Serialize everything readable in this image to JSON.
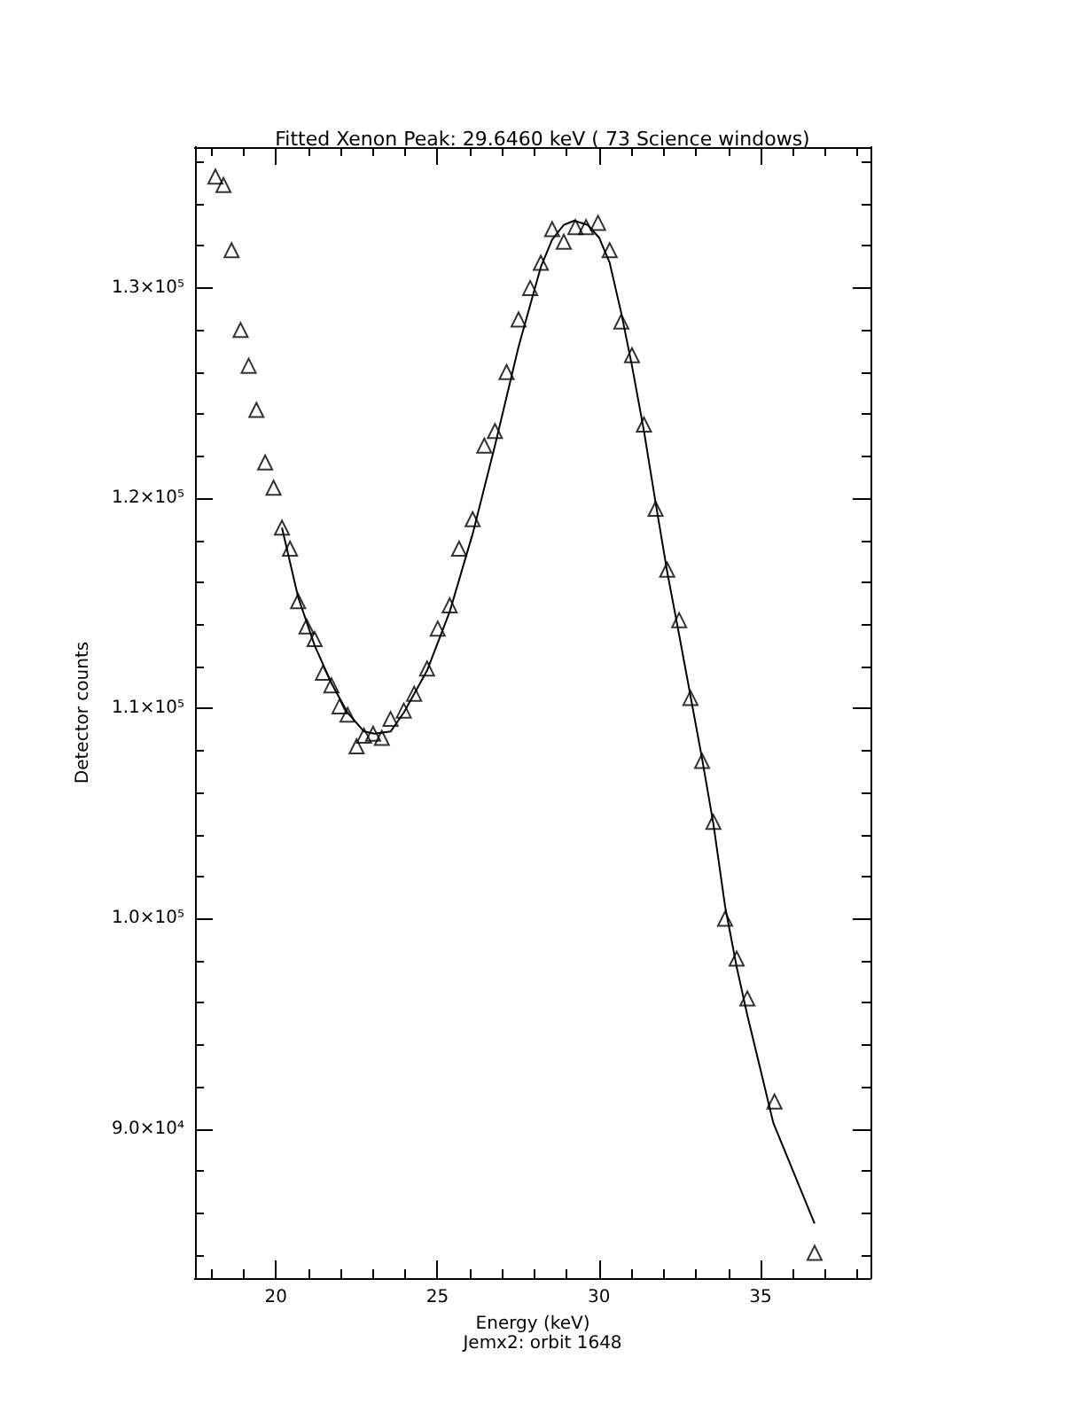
{
  "chart_data": {
    "type": "scatter",
    "title": "Fitted Xenon Peak: 29.6460 keV ( 73 Science windows)",
    "xlabel": "Energy (keV)",
    "ylabel": "Detector counts",
    "annotations": [
      "Jemx2: orbit 1648"
    ],
    "xlim": [
      17.5,
      38.4
    ],
    "ylim": [
      82900,
      136700
    ],
    "xticks": [
      {
        "value": 18,
        "label": null
      },
      {
        "value": 19,
        "label": null
      },
      20,
      {
        "value": 21,
        "label": null
      },
      {
        "value": 22,
        "label": null
      },
      {
        "value": 23,
        "label": null
      },
      {
        "value": 24,
        "label": null
      },
      25,
      {
        "value": 26,
        "label": null
      },
      {
        "value": 27,
        "label": null
      },
      {
        "value": 28,
        "label": null
      },
      {
        "value": 29,
        "label": null
      },
      30,
      {
        "value": 31,
        "label": null
      },
      {
        "value": 32,
        "label": null
      },
      {
        "value": 33,
        "label": null
      },
      {
        "value": 34,
        "label": null
      },
      35,
      {
        "value": 36,
        "label": null
      },
      {
        "value": 37,
        "label": null
      },
      {
        "value": 38,
        "label": null
      }
    ],
    "yticks": [
      {
        "value": 84000,
        "label": null
      },
      {
        "value": 86000,
        "label": null
      },
      {
        "value": 88000,
        "label": null
      },
      {
        "value": 90000,
        "label": "9.0×10⁴"
      },
      {
        "value": 92000,
        "label": null
      },
      {
        "value": 94000,
        "label": null
      },
      {
        "value": 96000,
        "label": null
      },
      {
        "value": 98000,
        "label": null
      },
      {
        "value": 100000,
        "label": "1.0×10⁵"
      },
      {
        "value": 102000,
        "label": null
      },
      {
        "value": 104000,
        "label": null
      },
      {
        "value": 106000,
        "label": null
      },
      {
        "value": 108000,
        "label": null
      },
      {
        "value": 110000,
        "label": "1.1×10⁵"
      },
      {
        "value": 112000,
        "label": null
      },
      {
        "value": 114000,
        "label": null
      },
      {
        "value": 116000,
        "label": null
      },
      {
        "value": 118000,
        "label": null
      },
      {
        "value": 120000,
        "label": "1.2×10⁵"
      },
      {
        "value": 122000,
        "label": null
      },
      {
        "value": 124000,
        "label": null
      },
      {
        "value": 126000,
        "label": null
      },
      {
        "value": 128000,
        "label": null
      },
      {
        "value": 130000,
        "label": "1.3×10⁵"
      },
      {
        "value": 132000,
        "label": null
      },
      {
        "value": 134000,
        "label": null
      },
      {
        "value": 136000,
        "label": null
      }
    ],
    "grid": false,
    "series": [
      {
        "marker": "triangle",
        "color": "#000000",
        "x": [
          18.13,
          18.38,
          18.63,
          18.91,
          19.16,
          19.4,
          19.67,
          19.93,
          20.19,
          20.44,
          20.69,
          20.95,
          21.2,
          21.46,
          21.72,
          21.97,
          22.22,
          22.5,
          22.73,
          23.01,
          23.28,
          23.55,
          23.96,
          24.28,
          24.68,
          25.01,
          25.38,
          25.67,
          26.09,
          26.45,
          26.78,
          27.14,
          27.51,
          27.87,
          28.2,
          28.55,
          28.91,
          29.27,
          29.6,
          29.97,
          30.33,
          30.69,
          31.02,
          31.39,
          31.75,
          32.11,
          32.48,
          32.83,
          33.19,
          33.54,
          33.9,
          34.26,
          34.59,
          35.43,
          36.67
        ],
        "values": [
          135300,
          134900,
          131800,
          128000,
          126300,
          124200,
          121700,
          120500,
          118600,
          117600,
          115100,
          113900,
          113300,
          111700,
          111100,
          110100,
          109700,
          108200,
          108700,
          108800,
          108600,
          109500,
          109900,
          110700,
          111900,
          113800,
          114900,
          117600,
          119000,
          122500,
          123200,
          126000,
          128500,
          130000,
          131200,
          132800,
          132200,
          132900,
          132900,
          133100,
          131800,
          128400,
          126800,
          123500,
          119500,
          116600,
          114200,
          110500,
          107500,
          104600,
          100000,
          98100,
          96200,
          91300,
          84100
        ]
      },
      {
        "type": "line",
        "marker": "none",
        "line_style": "solid",
        "color": "#000000",
        "x": [
          20.19,
          20.69,
          21.2,
          21.72,
          22.22,
          22.73,
          23.05,
          23.55,
          23.96,
          24.68,
          25.38,
          26.09,
          26.78,
          27.51,
          28.2,
          28.55,
          28.91,
          29.23,
          29.65,
          30.0,
          30.33,
          30.69,
          31.02,
          31.39,
          31.75,
          32.11,
          32.48,
          32.83,
          33.19,
          33.54,
          33.9,
          34.26,
          34.59,
          35.0,
          35.39,
          36.67
        ],
        "values": [
          118600,
          115300,
          113000,
          111200,
          109800,
          108900,
          108800,
          108900,
          109800,
          111800,
          114600,
          118300,
          122500,
          127200,
          131000,
          132300,
          133000,
          133200,
          133000,
          132400,
          131200,
          128800,
          126300,
          123200,
          119800,
          116500,
          113500,
          110600,
          107600,
          104500,
          100600,
          97700,
          95400,
          92800,
          90300,
          85500
        ]
      }
    ]
  }
}
